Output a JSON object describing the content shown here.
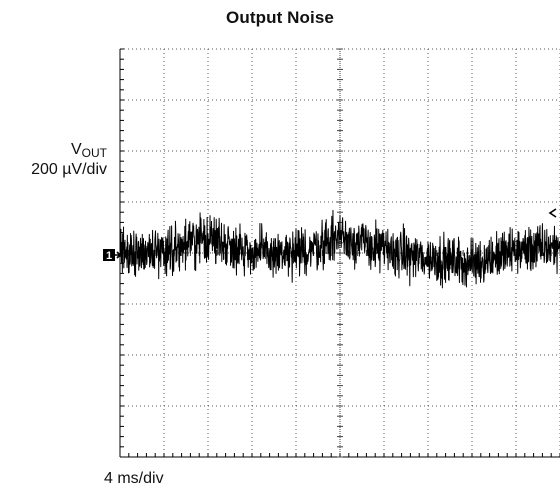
{
  "chart_data": {
    "type": "line",
    "title": "Output Noise",
    "ylabel": {
      "main": "V",
      "sub": "OUT",
      "scale": "200 µV/div"
    },
    "xlabel": "4 ms/div",
    "channel_marker": "1",
    "grid": true,
    "x_divisions": 10,
    "y_divisions": 8,
    "xlim": [
      0,
      40
    ],
    "ylim": [
      -800,
      800
    ],
    "x_units": "ms",
    "y_units": "µV",
    "series": [
      {
        "x": [
          0,
          4,
          8,
          12,
          16,
          20,
          24,
          28,
          32,
          36,
          40
        ],
        "values": [
          0,
          10,
          60,
          5,
          -10,
          70,
          10,
          -20,
          -40,
          10,
          25
        ]
      }
    ]
  }
}
